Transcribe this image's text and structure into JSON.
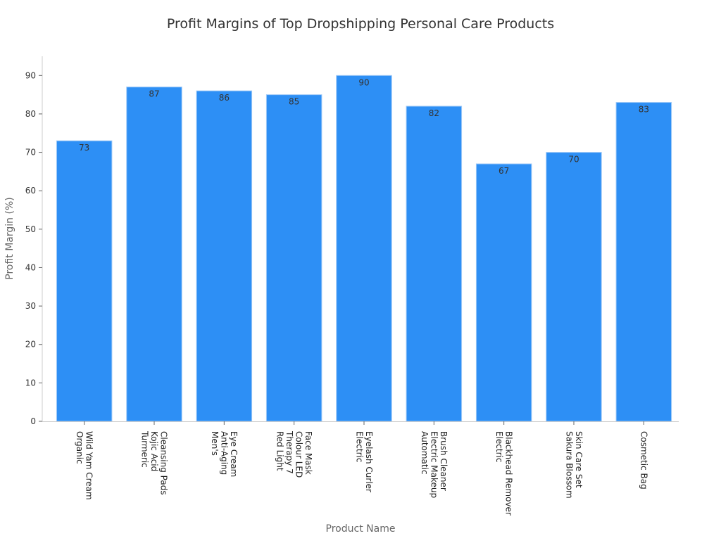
{
  "chart_data": {
    "type": "bar",
    "title": "Profit Margins of Top Dropshipping Personal Care Products",
    "xlabel": "Product Name",
    "ylabel": "Profit Margin (%)",
    "ylim": [
      0,
      95
    ],
    "yticks": [
      0,
      10,
      20,
      30,
      40,
      50,
      60,
      70,
      80,
      90
    ],
    "grid": false,
    "categories": [
      [
        "Organic",
        "Wild Yam Cream"
      ],
      [
        "Turmeric",
        "Kojic Acid",
        "Cleansing Pads"
      ],
      [
        "Men's",
        "Anti-Aging",
        "Eye Cream"
      ],
      [
        "Red Light",
        "Therapy 7",
        "Colour LED",
        "Face Mask"
      ],
      [
        "Electric",
        "Eyelash Curler"
      ],
      [
        "Automatic",
        "Electric Makeup",
        "Brush Cleaner"
      ],
      [
        "Electric",
        "Blackhead Remover"
      ],
      [
        "Sakura Blossom",
        "Skin Care Set"
      ],
      [
        "Cosmetic Bag"
      ]
    ],
    "values": [
      73,
      87,
      86,
      85,
      90,
      82,
      67,
      70,
      83
    ],
    "data_labels": [
      "73",
      "87",
      "86",
      "85",
      "90",
      "82",
      "67",
      "70",
      "83"
    ],
    "bar_color": "#2d8ff5",
    "bar_edge_color": "#9fc9f7"
  }
}
